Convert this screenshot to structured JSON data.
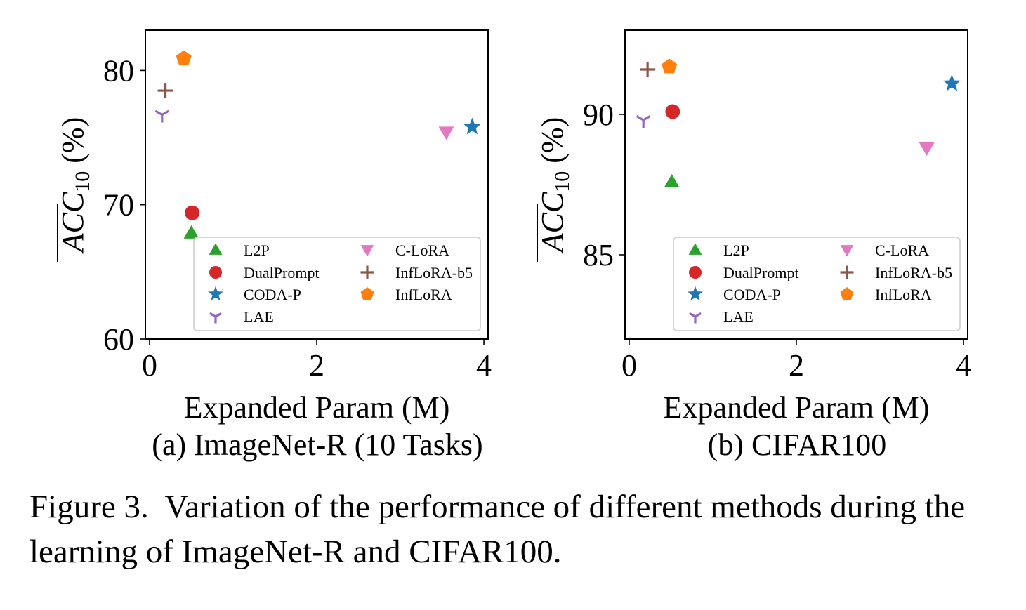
{
  "figure": {
    "caption_label": "Figure 3.",
    "caption_text": "Variation of the performance of different methods during the learning of ImageNet-R and CIFAR100."
  },
  "legend_entries": [
    {
      "name": "L2P",
      "marker": "triangle-up",
      "color": "#2ca02c"
    },
    {
      "name": "DualPrompt",
      "marker": "circle",
      "color": "#d62728"
    },
    {
      "name": "CODA-P",
      "marker": "star",
      "color": "#1f77b4"
    },
    {
      "name": "LAE",
      "marker": "tri-down",
      "color": "#9467bd"
    },
    {
      "name": "C-LoRA",
      "marker": "triangle-down",
      "color": "#e377c2"
    },
    {
      "name": "InfLoRA-b5",
      "marker": "plus",
      "color": "#8c564b"
    },
    {
      "name": "InfLoRA",
      "marker": "pentagon",
      "color": "#ff7f0e"
    }
  ],
  "chart_data": [
    {
      "type": "scatter",
      "subtitle": "(a) ImageNet-R (10 Tasks)",
      "xlabel": "Expanded Param (M)",
      "ylabel_main": "ACC",
      "ylabel_sub": "10",
      "ylabel_unit": "(%)",
      "xlim": [
        -0.05,
        4.05
      ],
      "ylim": [
        60,
        83
      ],
      "xticks": [
        0,
        2,
        4
      ],
      "yticks": [
        60,
        70,
        80
      ],
      "grid": false,
      "legend_position": "lower right",
      "points": [
        {
          "name": "L2P",
          "x": 0.5,
          "y": 67.9
        },
        {
          "name": "DualPrompt",
          "x": 0.51,
          "y": 69.4
        },
        {
          "name": "CODA-P",
          "x": 3.86,
          "y": 75.8
        },
        {
          "name": "LAE",
          "x": 0.15,
          "y": 76.7
        },
        {
          "name": "C-LoRA",
          "x": 3.55,
          "y": 75.4
        },
        {
          "name": "InfLoRA-b5",
          "x": 0.19,
          "y": 78.5
        },
        {
          "name": "InfLoRA",
          "x": 0.41,
          "y": 80.9
        }
      ]
    },
    {
      "type": "scatter",
      "subtitle": "(b) CIFAR100",
      "xlabel": "Expanded Param (M)",
      "ylabel_main": "ACC",
      "ylabel_sub": "10",
      "ylabel_unit": "(%)",
      "xlim": [
        -0.05,
        4.05
      ],
      "ylim": [
        82,
        93
      ],
      "xticks": [
        0,
        2,
        4
      ],
      "yticks": [
        85,
        90
      ],
      "grid": false,
      "legend_position": "lower right",
      "points": [
        {
          "name": "L2P",
          "x": 0.51,
          "y": 87.6
        },
        {
          "name": "DualPrompt",
          "x": 0.52,
          "y": 90.1
        },
        {
          "name": "CODA-P",
          "x": 3.86,
          "y": 91.1
        },
        {
          "name": "LAE",
          "x": 0.17,
          "y": 89.8
        },
        {
          "name": "C-LoRA",
          "x": 3.56,
          "y": 88.8
        },
        {
          "name": "InfLoRA-b5",
          "x": 0.22,
          "y": 91.6
        },
        {
          "name": "InfLoRA",
          "x": 0.48,
          "y": 91.7
        }
      ]
    }
  ]
}
